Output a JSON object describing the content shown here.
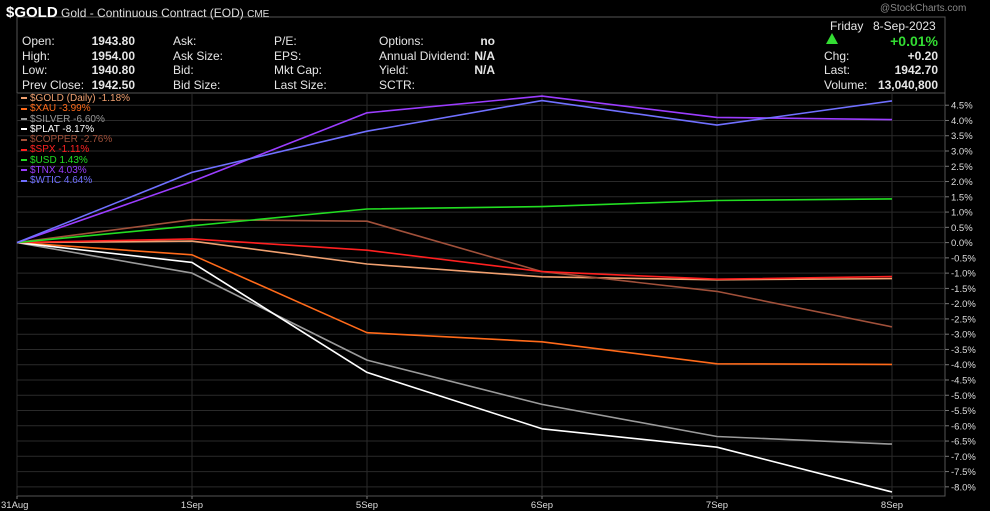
{
  "header": {
    "symbol": "$GOLD",
    "description": "Gold - Continuous Contract (EOD)",
    "exchange": "CME",
    "watermark": "@StockCharts.com",
    "day": "Friday",
    "date": "8-Sep-2023",
    "pct_change": "+0.01%",
    "up_color": "#33dd33",
    "fields": {
      "open_label": "Open:",
      "open_value": "1943.80",
      "high_label": "High:",
      "high_value": "1954.00",
      "low_label": "Low:",
      "low_value": "1940.80",
      "prevclose_label": "Prev Close:",
      "prevclose_value": "1942.50",
      "ask_label": "Ask:",
      "asksize_label": "Ask Size:",
      "bid_label": "Bid:",
      "bidsize_label": "Bid Size:",
      "pe_label": "P/E:",
      "eps_label": "EPS:",
      "mktcap_label": "Mkt Cap:",
      "lastsize_label": "Last Size:",
      "options_label": "Options:",
      "options_value": "no",
      "dividend_label": "Annual Dividend:",
      "dividend_value": "N/A",
      "yield_label": "Yield:",
      "yield_value": "N/A",
      "sctr_label": "SCTR:",
      "chg_label": "Chg:",
      "chg_value": "+0.20",
      "last_label": "Last:",
      "last_value": "1942.70",
      "volume_label": "Volume:",
      "volume_value": "13,040,800"
    }
  },
  "chart_data": {
    "type": "line",
    "x": [
      "31Aug",
      "1Sep",
      "5Sep",
      "6Sep",
      "7Sep",
      "8Sep"
    ],
    "ylim": [
      -8.3,
      4.9
    ],
    "y_ticks": [
      "4.5%",
      "4.0%",
      "3.5%",
      "3.0%",
      "2.5%",
      "2.0%",
      "1.5%",
      "1.0%",
      "0.5%",
      "0.0%",
      "-0.5%",
      "-1.0%",
      "-1.5%",
      "-2.0%",
      "-2.5%",
      "-3.0%",
      "-3.5%",
      "-4.0%",
      "-4.5%",
      "-5.0%",
      "-5.5%",
      "-6.0%",
      "-6.5%",
      "-7.0%",
      "-7.5%",
      "-8.0%"
    ],
    "y_tick_values": [
      4.5,
      4.0,
      3.5,
      3.0,
      2.5,
      2.0,
      1.5,
      1.0,
      0.5,
      0.0,
      -0.5,
      -1.0,
      -1.5,
      -2.0,
      -2.5,
      -3.0,
      -3.5,
      -4.0,
      -4.5,
      -5.0,
      -5.5,
      -6.0,
      -6.5,
      -7.0,
      -7.5,
      -8.0
    ],
    "grid": true,
    "legend_position": "top-left",
    "series": [
      {
        "name": "$GOLD (Daily)",
        "legend": "$GOLD (Daily) -1.18%",
        "color": "#f0a070",
        "values": [
          0,
          0.05,
          -0.7,
          -1.12,
          -1.22,
          -1.18
        ]
      },
      {
        "name": "$XAU",
        "legend": "$XAU -3.99%",
        "color": "#ff6a1a",
        "values": [
          0,
          -0.4,
          -2.95,
          -3.25,
          -3.97,
          -3.99
        ]
      },
      {
        "name": "$SILVER",
        "legend": "$SILVER -6.60%",
        "color": "#9a9a9a",
        "values": [
          0,
          -1.0,
          -3.85,
          -5.3,
          -6.35,
          -6.6
        ]
      },
      {
        "name": "$PLAT",
        "legend": "$PLAT -8.17%",
        "color": "#ffffff",
        "values": [
          0,
          -0.65,
          -4.25,
          -6.1,
          -6.7,
          -8.17
        ]
      },
      {
        "name": "$COPPER",
        "legend": "$COPPER -2.76%",
        "color": "#a0503a",
        "values": [
          0,
          0.75,
          0.7,
          -0.95,
          -1.6,
          -2.76
        ]
      },
      {
        "name": "$SPX",
        "legend": "$SPX -1.11%",
        "color": "#ff2020",
        "values": [
          0,
          0.12,
          -0.25,
          -0.95,
          -1.2,
          -1.11
        ]
      },
      {
        "name": "$USD",
        "legend": "$USD 1.43%",
        "color": "#22dd22",
        "values": [
          0,
          0.55,
          1.1,
          1.18,
          1.38,
          1.43
        ]
      },
      {
        "name": "$TNX",
        "legend": "$TNX 4.03%",
        "color": "#9b3dff",
        "values": [
          0,
          2.0,
          4.25,
          4.8,
          4.1,
          4.03
        ]
      },
      {
        "name": "$WTIC",
        "legend": "$WTIC 4.64%",
        "color": "#7070ff",
        "values": [
          0,
          2.3,
          3.65,
          4.65,
          3.85,
          4.64
        ]
      }
    ]
  }
}
